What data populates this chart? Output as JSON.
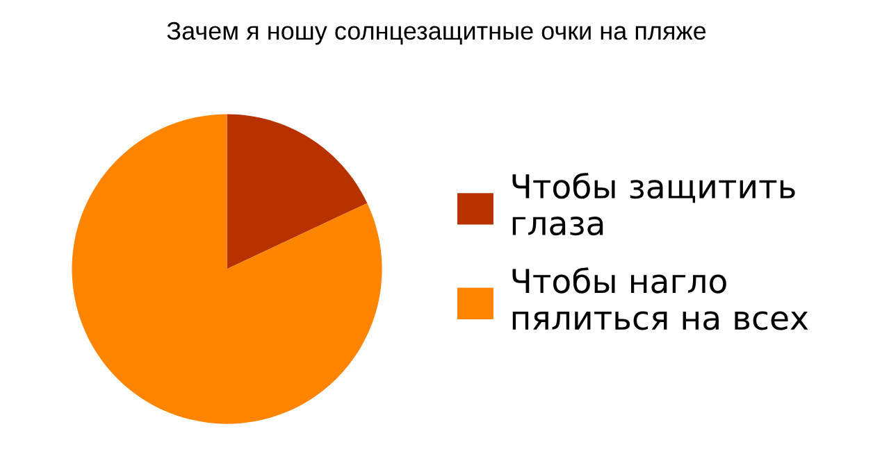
{
  "chart_data": {
    "type": "pie",
    "title": "Зачем я ношу солнцезащитные очки на пляже",
    "categories": [
      "Чтобы защитить\nглаза",
      "Чтобы нагло\nпялиться на всех"
    ],
    "values": [
      18,
      82
    ],
    "colors": [
      "#b83200",
      "#ff8400"
    ],
    "legend": "right"
  }
}
